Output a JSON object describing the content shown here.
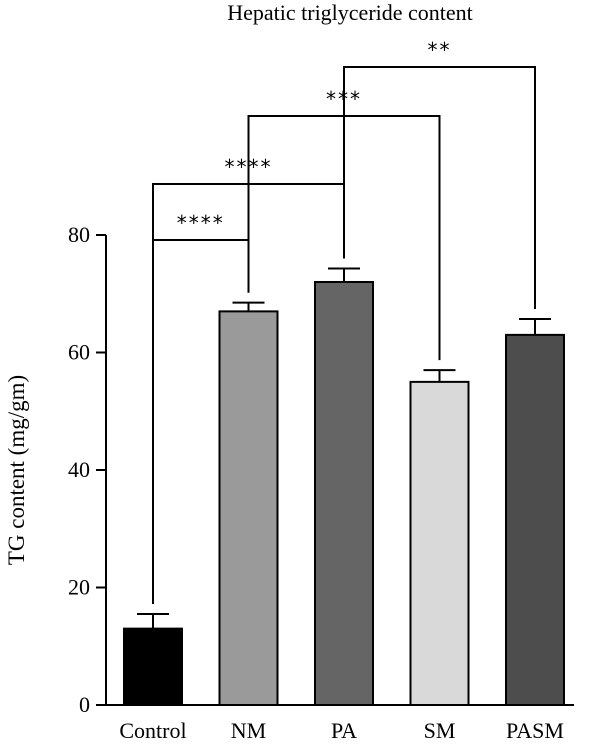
{
  "chart_data": {
    "type": "bar",
    "title": "Hepatic triglyceride content",
    "ylabel": "TG content (mg/gm)",
    "xlabel": "",
    "ylim": [
      0,
      80
    ],
    "yticks": [
      0,
      20,
      40,
      60,
      80
    ],
    "categories": [
      "Control",
      "NM",
      "PA",
      "SM",
      "PASM"
    ],
    "values": [
      13,
      67,
      72,
      55,
      63
    ],
    "errors": [
      2.5,
      1.5,
      2.3,
      2.0,
      2.7
    ],
    "colors": [
      "#000000",
      "#9a9a9a",
      "#656565",
      "#d9d9d9",
      "#4d4d4d"
    ],
    "grid": false,
    "significance": [
      {
        "from": "Control",
        "to": "NM",
        "label": "****"
      },
      {
        "from": "Control",
        "to": "PA",
        "label": "****"
      },
      {
        "from": "NM",
        "to": "SM",
        "label": "***"
      },
      {
        "from": "PA",
        "to": "PASM",
        "label": "**"
      }
    ]
  }
}
